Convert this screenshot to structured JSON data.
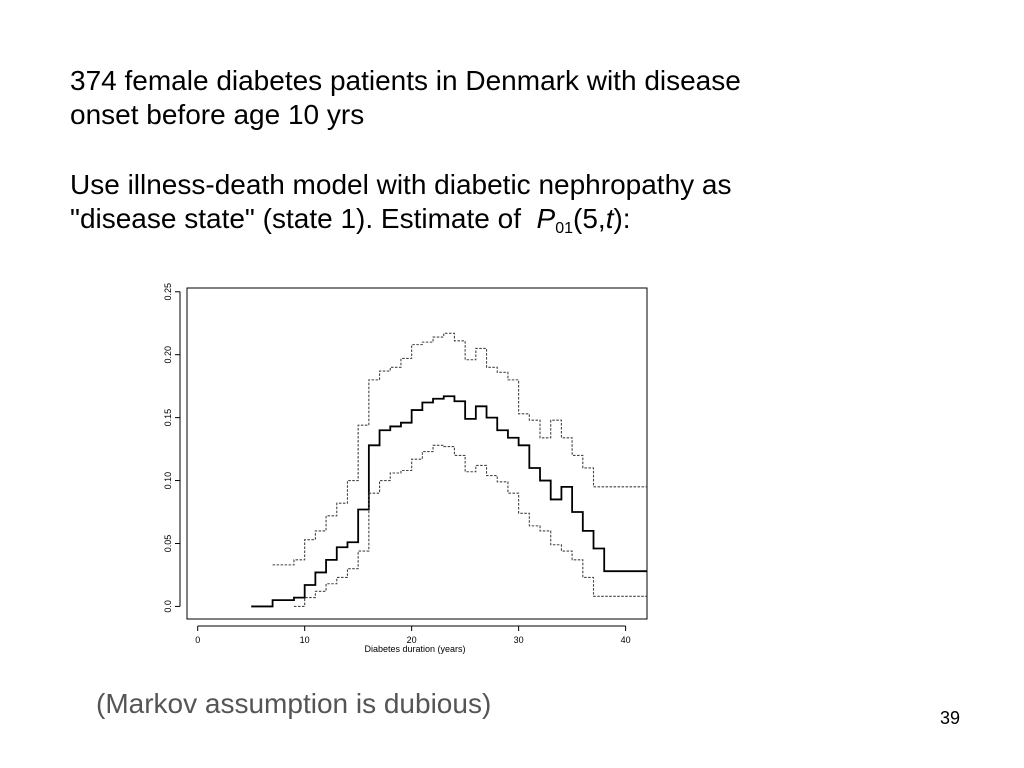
{
  "slide": {
    "line1": "374 female diabetes patients in Denmark with disease",
    "line2": "onset before age 10 yrs",
    "line3": "Use illness-death model with diabetic nephropathy as",
    "line4_prefix": "\"disease state\" (state 1).  Estimate of",
    "p_symbol": "P",
    "p_sub": "01",
    "p_args_open": "(5,",
    "p_arg_t": "t",
    "p_args_close": "):",
    "note": "(Markov assumption is dubious)",
    "page_number": "39"
  },
  "chart_data": {
    "type": "line",
    "step": true,
    "xlabel": "Diabetes duration (years)",
    "ylabel": "",
    "xlim": [
      -1,
      42
    ],
    "ylim": [
      -0.01,
      0.253
    ],
    "xticks": [
      0,
      10,
      20,
      30,
      40
    ],
    "xtick_labels": [
      "0",
      "10",
      "20",
      "30",
      "40"
    ],
    "yticks": [
      0.0,
      0.05,
      0.1,
      0.15,
      0.2,
      0.25
    ],
    "ytick_labels": [
      "0.0",
      "0.05",
      "0.10",
      "0.15",
      "0.20",
      "0.25"
    ],
    "grid": false,
    "legend": "none",
    "series": [
      {
        "line_style": "solid",
        "color": "#000000",
        "x": [
          5,
          7,
          9,
          10,
          11,
          12,
          13,
          14,
          15,
          16,
          17,
          18,
          19,
          20,
          21,
          22,
          23,
          24,
          25,
          26,
          27,
          28,
          29,
          30,
          31,
          32,
          33,
          34,
          35,
          36,
          37,
          38,
          39,
          40,
          42
        ],
        "y": [
          0.0,
          0.005,
          0.007,
          0.017,
          0.027,
          0.037,
          0.047,
          0.051,
          0.077,
          0.128,
          0.14,
          0.143,
          0.146,
          0.156,
          0.162,
          0.165,
          0.167,
          0.163,
          0.149,
          0.159,
          0.15,
          0.14,
          0.134,
          0.128,
          0.11,
          0.1,
          0.085,
          0.095,
          0.075,
          0.06,
          0.046,
          0.028,
          0.028,
          0.028,
          0.028
        ]
      },
      {
        "line_style": "dashed",
        "color": "#444444",
        "x": [
          7,
          9,
          10,
          11,
          12,
          13,
          14,
          15,
          16,
          17,
          18,
          19,
          20,
          21,
          22,
          23,
          24,
          25,
          26,
          27,
          28,
          29,
          30,
          31,
          32,
          33,
          34,
          35,
          36,
          37,
          38,
          39,
          40,
          42
        ],
        "y": [
          0.033,
          0.037,
          0.053,
          0.06,
          0.072,
          0.082,
          0.1,
          0.144,
          0.18,
          0.187,
          0.19,
          0.197,
          0.208,
          0.21,
          0.214,
          0.217,
          0.211,
          0.196,
          0.205,
          0.19,
          0.186,
          0.18,
          0.153,
          0.148,
          0.134,
          0.148,
          0.134,
          0.12,
          0.11,
          0.095,
          0.095,
          0.095,
          0.095,
          0.095
        ]
      },
      {
        "line_style": "dashed",
        "color": "#444444",
        "x": [
          9,
          10,
          11,
          12,
          13,
          14,
          15,
          16,
          17,
          18,
          19,
          20,
          21,
          22,
          23,
          24,
          25,
          26,
          27,
          28,
          29,
          30,
          31,
          32,
          33,
          34,
          35,
          36,
          37,
          38,
          39,
          40,
          42
        ],
        "y": [
          0.0,
          0.007,
          0.012,
          0.018,
          0.023,
          0.03,
          0.044,
          0.09,
          0.1,
          0.106,
          0.108,
          0.117,
          0.123,
          0.128,
          0.127,
          0.12,
          0.107,
          0.112,
          0.104,
          0.099,
          0.09,
          0.074,
          0.064,
          0.06,
          0.049,
          0.044,
          0.037,
          0.023,
          0.008,
          0.008,
          0.008,
          0.008,
          0.008
        ]
      }
    ]
  }
}
